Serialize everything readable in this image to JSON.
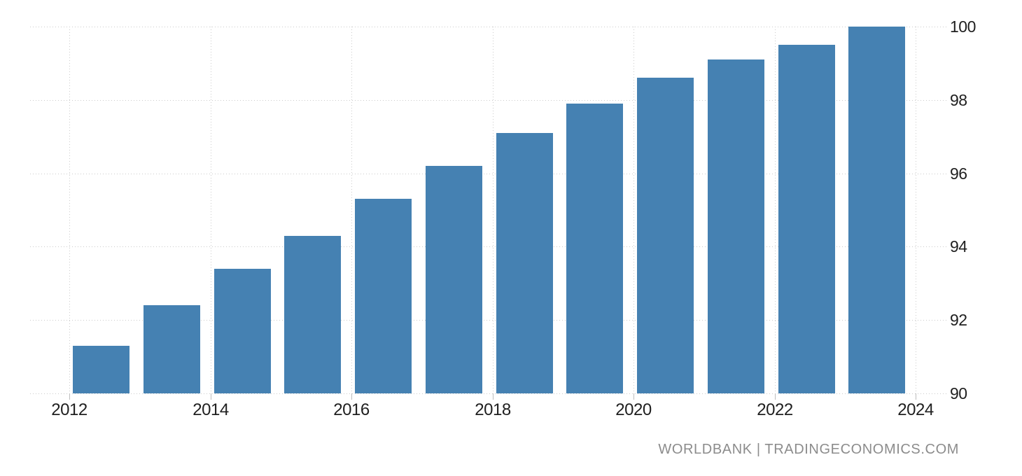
{
  "chart_data": {
    "type": "bar",
    "categories": [
      2012,
      2013,
      2014,
      2015,
      2016,
      2017,
      2018,
      2019,
      2020,
      2021,
      2022,
      2023
    ],
    "values": [
      91.3,
      92.4,
      93.4,
      94.3,
      95.3,
      96.2,
      97.1,
      97.9,
      98.6,
      99.1,
      99.5,
      100
    ],
    "title": "",
    "xlabel": "",
    "ylabel": "",
    "x_ticks": [
      2012,
      2014,
      2016,
      2018,
      2020,
      2022,
      2024
    ],
    "y_ticks": [
      90,
      92,
      94,
      96,
      98,
      100
    ],
    "xlim": [
      2012,
      2024
    ],
    "ylim": [
      90,
      100
    ],
    "grid": "dotted",
    "y_axis_position": "right",
    "legend_position": "none"
  },
  "colors": {
    "bar": "#4581B2",
    "grid": "#CBCBCB",
    "tick_mark": "#BDBDBD",
    "tick_label": "#1F1F1F",
    "attribution": "#8C8C8C",
    "background": "#FFFFFF"
  },
  "footer": {
    "attribution": "WORLDBANK | TRADINGECONOMICS.COM"
  }
}
